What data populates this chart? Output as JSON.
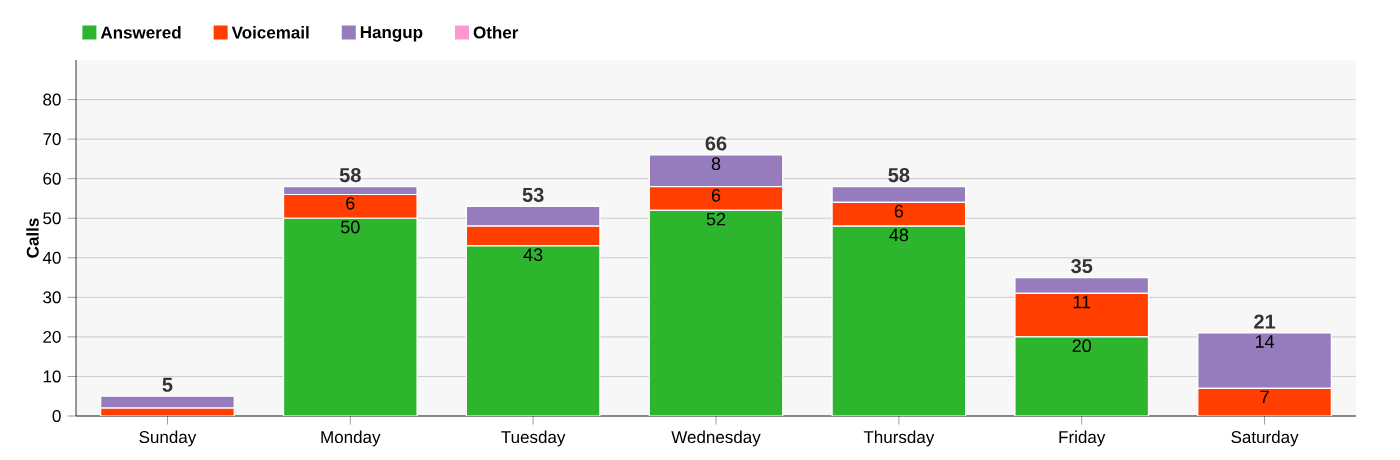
{
  "chart_data": {
    "type": "bar",
    "stacked": true,
    "ylabel": "Calls",
    "categories": [
      "Sunday",
      "Monday",
      "Tuesday",
      "Wednesday",
      "Thursday",
      "Friday",
      "Saturday"
    ],
    "series": [
      {
        "name": "Answered",
        "color": "#2db52d",
        "values": [
          0,
          50,
          43,
          52,
          48,
          20,
          0
        ],
        "value_labels": [
          null,
          "50",
          "43",
          "52",
          "48",
          "20",
          null
        ]
      },
      {
        "name": "Voicemail",
        "color": "#ff3e00",
        "values": [
          2,
          6,
          5,
          6,
          6,
          11,
          7
        ],
        "value_labels": [
          null,
          "6",
          null,
          "6",
          "6",
          "11",
          "7"
        ]
      },
      {
        "name": "Hangup",
        "color": "#967bbd",
        "values": [
          3,
          2,
          5,
          8,
          4,
          4,
          14
        ],
        "value_labels": [
          null,
          null,
          null,
          "8",
          null,
          null,
          "14"
        ]
      },
      {
        "name": "Other",
        "color": "#ff99cc",
        "values": [
          0,
          0,
          0,
          0,
          0,
          0,
          0
        ],
        "value_labels": [
          null,
          null,
          null,
          null,
          null,
          null,
          null
        ]
      }
    ],
    "totals": [
      "5",
      "58",
      "53",
      "66",
      "58",
      "35",
      "21"
    ],
    "ylim": [
      0,
      90
    ],
    "yticks": [
      0,
      10,
      20,
      30,
      40,
      50,
      60,
      70,
      80
    ],
    "grid": "y",
    "legend": "top left"
  }
}
